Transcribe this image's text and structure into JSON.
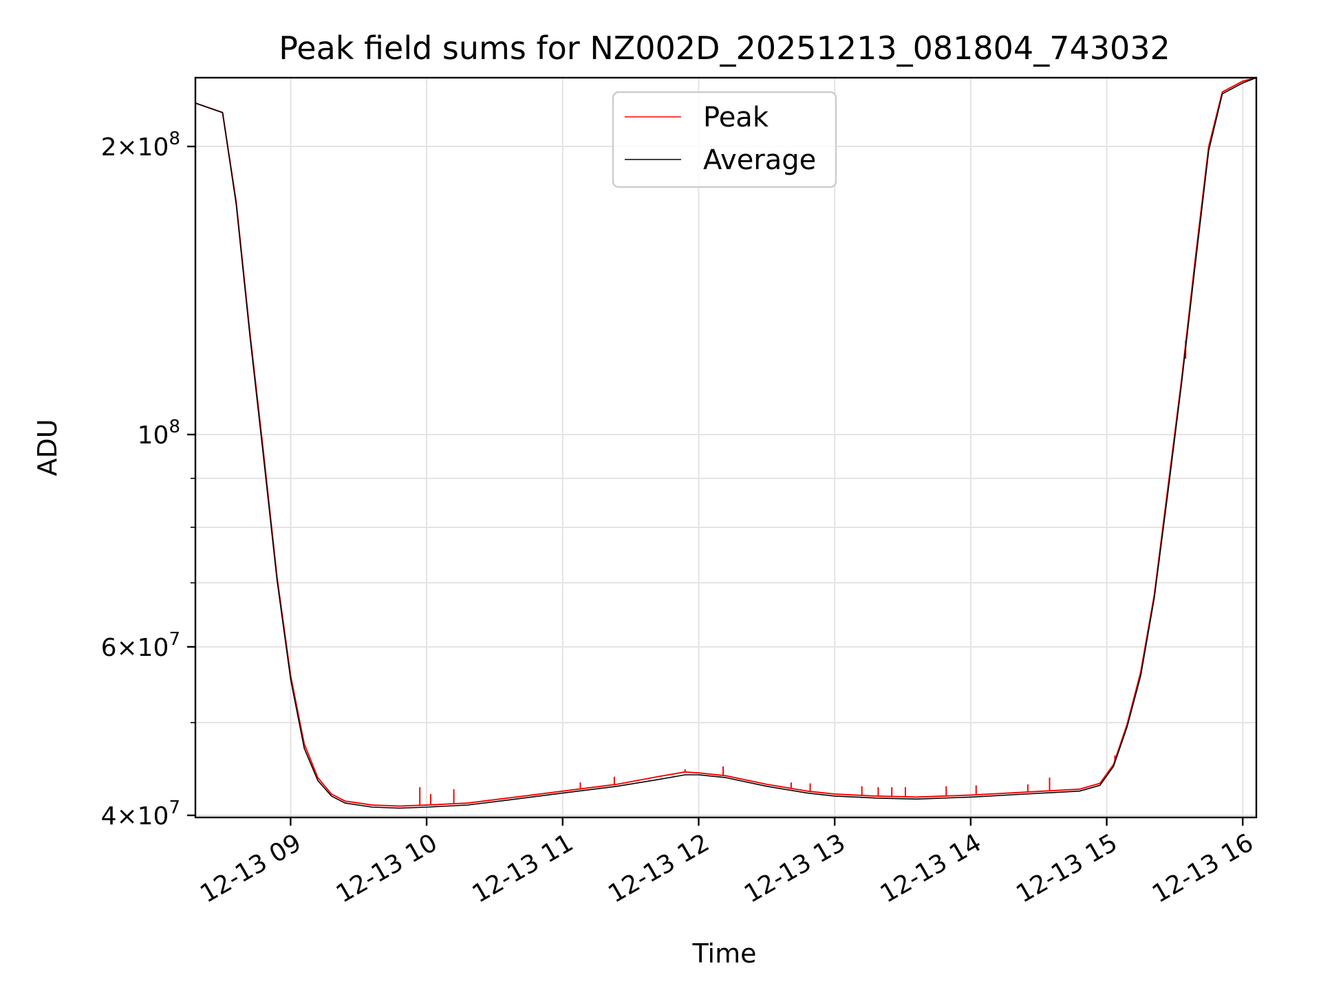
{
  "chart_data": {
    "type": "line",
    "title": "Peak field sums for NZ002D_20251213_081804_743032",
    "xlabel": "Time",
    "ylabel": "ADU",
    "y_scale": "log",
    "xlim": [
      8.3,
      16.1
    ],
    "ylim": [
      39800000,
      236000000
    ],
    "x_unit": "hours of day 12-13",
    "x_ticks": [
      {
        "value": 9,
        "label": "12-13 09"
      },
      {
        "value": 10,
        "label": "12-13 10"
      },
      {
        "value": 11,
        "label": "12-13 11"
      },
      {
        "value": 12,
        "label": "12-13 12"
      },
      {
        "value": 13,
        "label": "12-13 13"
      },
      {
        "value": 14,
        "label": "12-13 14"
      },
      {
        "value": 15,
        "label": "12-13 15"
      },
      {
        "value": 16,
        "label": "12-13 16"
      }
    ],
    "y_ticks": [
      {
        "value": 40000000,
        "base": "4",
        "exp": "7",
        "times": true
      },
      {
        "value": 60000000,
        "base": "6",
        "exp": "7",
        "times": true
      },
      {
        "value": 100000000,
        "base": "10",
        "exp": "8",
        "times": false
      },
      {
        "value": 200000000,
        "base": "2",
        "exp": "8",
        "times": true
      }
    ],
    "y_minor_ticks": [
      50000000,
      70000000,
      80000000,
      90000000
    ],
    "grid": true,
    "legend_position": "top-center",
    "series": [
      {
        "name": "Peak",
        "color": "#ff0000",
        "x": [
          8.3,
          8.5,
          8.6,
          8.7,
          8.8,
          8.9,
          9.0,
          9.1,
          9.2,
          9.3,
          9.4,
          9.6,
          9.8,
          10.0,
          10.3,
          10.6,
          11.0,
          11.4,
          11.7,
          11.9,
          12.0,
          12.2,
          12.5,
          12.8,
          13.0,
          13.3,
          13.6,
          14.0,
          14.4,
          14.8,
          14.95,
          15.05,
          15.15,
          15.25,
          15.35,
          15.45,
          15.55,
          15.65,
          15.75,
          15.85,
          16.0,
          16.1
        ],
        "y": [
          222000000,
          217000000,
          175000000,
          128000000,
          96000000,
          71000000,
          56000000,
          47500000,
          43800000,
          42100000,
          41400000,
          41000000,
          40900000,
          41000000,
          41200000,
          41700000,
          42400000,
          43100000,
          43900000,
          44400000,
          44300000,
          44000000,
          43100000,
          42400000,
          42100000,
          41900000,
          41800000,
          42000000,
          42300000,
          42600000,
          43200000,
          45200000,
          49800000,
          56500000,
          68000000,
          88000000,
          114000000,
          152000000,
          200000000,
          228000000,
          234000000,
          236000000
        ],
        "spikes": [
          {
            "x": 9.95,
            "y": 42800000
          },
          {
            "x": 10.03,
            "y": 42100000
          },
          {
            "x": 10.2,
            "y": 42600000
          },
          {
            "x": 11.13,
            "y": 43300000
          },
          {
            "x": 11.38,
            "y": 43900000
          },
          {
            "x": 11.9,
            "y": 44700000
          },
          {
            "x": 12.18,
            "y": 45000000
          },
          {
            "x": 12.68,
            "y": 43300000
          },
          {
            "x": 12.82,
            "y": 43200000
          },
          {
            "x": 13.2,
            "y": 42900000
          },
          {
            "x": 13.32,
            "y": 42800000
          },
          {
            "x": 13.42,
            "y": 42800000
          },
          {
            "x": 13.52,
            "y": 42800000
          },
          {
            "x": 13.82,
            "y": 42900000
          },
          {
            "x": 14.04,
            "y": 43000000
          },
          {
            "x": 14.42,
            "y": 43100000
          },
          {
            "x": 14.58,
            "y": 43800000
          },
          {
            "x": 15.06,
            "y": 46200000
          },
          {
            "x": 15.58,
            "y": 120000000
          }
        ]
      },
      {
        "name": "Average",
        "color": "#000000",
        "x": [
          8.3,
          8.5,
          8.6,
          8.7,
          8.8,
          8.9,
          9.0,
          9.1,
          9.2,
          9.3,
          9.4,
          9.6,
          9.8,
          10.0,
          10.3,
          10.6,
          11.0,
          11.4,
          11.7,
          11.9,
          12.0,
          12.2,
          12.5,
          12.8,
          13.0,
          13.3,
          13.6,
          14.0,
          14.4,
          14.8,
          14.95,
          15.05,
          15.15,
          15.25,
          15.35,
          15.45,
          15.55,
          15.65,
          15.75,
          15.85,
          16.0,
          16.1
        ],
        "y": [
          222000000,
          217000000,
          174000000,
          127000000,
          95000000,
          70500000,
          55500000,
          47000000,
          43500000,
          41900000,
          41200000,
          40800000,
          40700000,
          40800000,
          41000000,
          41500000,
          42200000,
          42900000,
          43600000,
          44100000,
          44100000,
          43800000,
          42900000,
          42200000,
          41900000,
          41700000,
          41600000,
          41800000,
          42100000,
          42400000,
          43000000,
          45000000,
          49500000,
          56000000,
          67500000,
          87000000,
          113000000,
          150000000,
          198000000,
          227000000,
          233000000,
          236000000
        ]
      }
    ]
  }
}
